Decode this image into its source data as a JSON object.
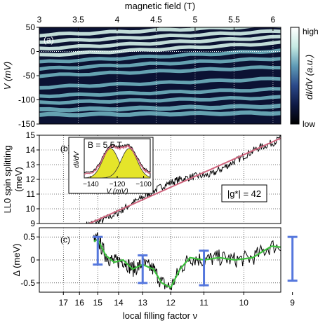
{
  "chart_data": [
    {
      "id": "a",
      "type": "heatmap",
      "panel_label": "(a)",
      "top_axis": {
        "label": "magnetic field (T)",
        "ticks": [
          "3",
          "3.5",
          "4",
          "4.5",
          "5",
          "5.5",
          "6"
        ],
        "range": [
          3.0,
          6.1
        ]
      },
      "ylabel": "V (mV)",
      "y_ticks": [
        "50",
        "0",
        "-50",
        "-100",
        "-150"
      ],
      "ylim": [
        -150,
        50
      ],
      "colorbar": {
        "label": "dI/dV (a.u.)",
        "high_label": "high",
        "low_label": "low",
        "colors": [
          "#000000",
          "#0f1a45",
          "#2b4a8a",
          "#5f9bb6",
          "#c6ebe3",
          "#ffffff"
        ]
      },
      "bands": [
        {
          "v0": -131,
          "v1": -127,
          "w": 6,
          "i": 0.8
        },
        {
          "v0": -121,
          "v1": -113,
          "w": 6,
          "i": 0.6
        },
        {
          "v0": -106,
          "v1": -95,
          "w": 5,
          "i": 0.5
        },
        {
          "v0": -92,
          "v1": -78,
          "w": 5,
          "i": 0.5
        },
        {
          "v0": -74,
          "v1": -56,
          "w": 5,
          "i": 0.55
        },
        {
          "v0": -50,
          "v1": -32,
          "w": 5,
          "i": 0.6
        },
        {
          "v0": -36,
          "v1": -14,
          "w": 5,
          "i": 0.65
        },
        {
          "v0": -22,
          "v1": 2,
          "w": 5,
          "i": 0.75
        },
        {
          "v0": -8,
          "v1": 18,
          "w": 5,
          "i": 0.85
        },
        {
          "v0": 6,
          "v1": 30,
          "w": 5,
          "i": 0.9
        },
        {
          "v0": 20,
          "v1": 42,
          "w": 5,
          "i": 0.95
        },
        {
          "v0": 34,
          "v1": 54,
          "w": 5,
          "i": 1.0
        }
      ]
    },
    {
      "id": "b",
      "type": "line",
      "panel_label": "(b)",
      "ylabel": "LL0 spin splitting (meV)",
      "ylim": [
        9,
        15
      ],
      "y_ticks": [
        9,
        10,
        11,
        12,
        13,
        14,
        15
      ],
      "x_nu_ticks": [
        17,
        16,
        15,
        14,
        13,
        12,
        11,
        10,
        9
      ],
      "series": [
        {
          "kind": "data",
          "color": "#000000",
          "x_field_T": [
            3.6,
            3.8,
            4.0,
            4.2,
            4.4,
            4.6,
            4.8,
            5.0,
            5.2,
            5.4,
            5.6,
            5.8,
            6.0,
            6.1
          ],
          "y": [
            8.9,
            9.2,
            9.7,
            10.4,
            11.0,
            11.6,
            12.0,
            12.2,
            12.3,
            12.9,
            13.5,
            14.1,
            14.5,
            14.8
          ]
        },
        {
          "kind": "fit",
          "color": "#d0667f",
          "x_field_T": [
            3.6,
            6.1
          ],
          "y": [
            8.9,
            14.8
          ]
        }
      ],
      "annotation": "|g*| = 42",
      "inset": {
        "title": "B = 5.5 T",
        "xlabel": "V (mV)",
        "ylabel": "dI/dV",
        "x_ticks": [
          "−140",
          "−120",
          "−100"
        ],
        "xlim": [
          -145,
          -95
        ],
        "peaks": [
          {
            "center": -125,
            "color": "#e5e52a"
          },
          {
            "center": -111,
            "color": "#e5e52a"
          }
        ],
        "envelope_color": "#d0667f"
      }
    },
    {
      "id": "c",
      "type": "line",
      "panel_label": "(c)",
      "ylabel": "Δ (meV)",
      "ylim": [
        -0.7,
        0.7
      ],
      "y_ticks": [
        "0.5",
        "0",
        "-0.5"
      ],
      "xlabel": "local filling factor ν",
      "x_ticks": [
        "17",
        "16",
        "15",
        "14",
        "13",
        "12",
        "11",
        "10",
        "9"
      ],
      "series": [
        {
          "kind": "smoothed",
          "color": "#3cc13c",
          "nu": [
            15.2,
            15.0,
            14.6,
            14.2,
            13.8,
            13.4,
            13.0,
            12.6,
            12.3,
            12.0,
            11.7,
            11.4,
            11.0,
            10.6,
            10.2,
            9.8,
            9.4,
            9.0,
            8.7
          ],
          "y": [
            0.4,
            0.45,
            0.1,
            -0.05,
            0.0,
            -0.2,
            -0.1,
            -0.2,
            -0.5,
            -0.6,
            -0.2,
            0.05,
            0.0,
            0.05,
            0.0,
            0.05,
            0.3,
            0.25,
            0.15
          ]
        }
      ],
      "error_bars": [
        {
          "nu": 15.0,
          "low": -0.1,
          "high": 0.5
        },
        {
          "nu": 13.0,
          "low": -0.5,
          "high": 0.1
        },
        {
          "nu": 11.0,
          "low": -0.55,
          "high": 0.2
        },
        {
          "nu": 9.0,
          "low": -0.45,
          "high": 0.5
        }
      ],
      "error_color": "#5577dd"
    }
  ]
}
